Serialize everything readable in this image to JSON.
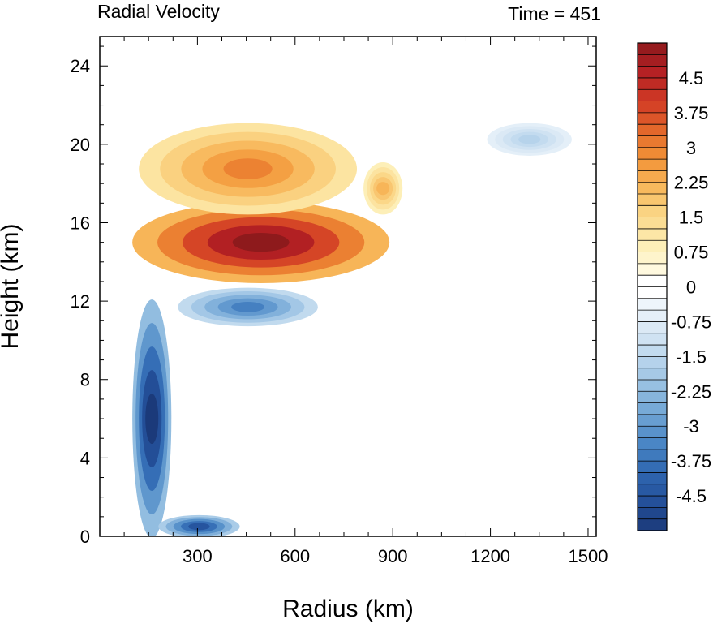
{
  "chart_data": {
    "type": "heatmap",
    "title_left": "Radial Velocity",
    "title_right": "Time = 451",
    "xlabel": "Radius (km)",
    "ylabel": "Height (km)",
    "xlim": [
      0,
      1525
    ],
    "ylim": [
      0,
      25.5
    ],
    "xticks": [
      300,
      600,
      900,
      1200,
      1500
    ],
    "yticks": [
      0,
      4,
      8,
      12,
      16,
      20,
      24
    ],
    "colorbar": {
      "levels": [
        -5.25,
        -5.0,
        -4.75,
        -4.5,
        -4.25,
        -4.0,
        -3.75,
        -3.5,
        -3.25,
        -3.0,
        -2.75,
        -2.5,
        -2.25,
        -2.0,
        -1.75,
        -1.5,
        -1.25,
        -1.0,
        -0.75,
        -0.5,
        -0.25,
        0.0,
        0.25,
        0.5,
        0.75,
        1.0,
        1.25,
        1.5,
        1.75,
        2.0,
        2.25,
        2.5,
        2.75,
        3.0,
        3.25,
        3.5,
        3.75,
        4.0,
        4.25,
        4.5,
        4.75,
        5.0,
        5.25
      ],
      "tick_labels": [
        "4.5",
        "3.75",
        "3",
        "2.25",
        "1.5",
        "0.75",
        "0",
        "-0.75",
        "-1.5",
        "-2.25",
        "-3",
        "-3.75",
        "-4.5"
      ],
      "tick_values": [
        4.5,
        3.75,
        3.0,
        2.25,
        1.5,
        0.75,
        0.0,
        -0.75,
        -1.5,
        -2.25,
        -3.0,
        -3.75,
        -4.5
      ],
      "colors_negative": "#1b3a7a",
      "colors_zero": "#ffffff",
      "colors_positive": "#8e1a1c"
    },
    "features": [
      {
        "name": "upper-outflow-jet",
        "sign": "positive",
        "r_range": [
          110,
          880
        ],
        "z_range": [
          13,
          17
        ],
        "peak": 5.5
      },
      {
        "name": "low-level-inflow-core",
        "sign": "negative",
        "r_range": [
          110,
          210
        ],
        "z_range": [
          0,
          12
        ],
        "peak": -5.5
      },
      {
        "name": "mid-level-inflow-band",
        "sign": "negative",
        "r_range": [
          250,
          660
        ],
        "z_range": [
          10.8,
          12.6
        ],
        "peak": -3.5
      },
      {
        "name": "upper-outflow-arm",
        "sign": "positive",
        "r_range": [
          130,
          780
        ],
        "z_range": [
          16.5,
          21
        ],
        "peak": 3.0
      },
      {
        "name": "outer-outflow-patch",
        "sign": "positive",
        "r_range": [
          820,
          920
        ],
        "z_range": [
          16.5,
          19
        ],
        "peak": 2.2
      },
      {
        "name": "upper-inflow-patch",
        "sign": "negative",
        "r_range": [
          1200,
          1440
        ],
        "z_range": [
          19.5,
          21
        ],
        "peak": -1.6
      },
      {
        "name": "boundary-layer-inflow",
        "sign": "negative",
        "r_range": [
          190,
          420
        ],
        "z_range": [
          0,
          1
        ],
        "peak": -4.5
      }
    ]
  }
}
